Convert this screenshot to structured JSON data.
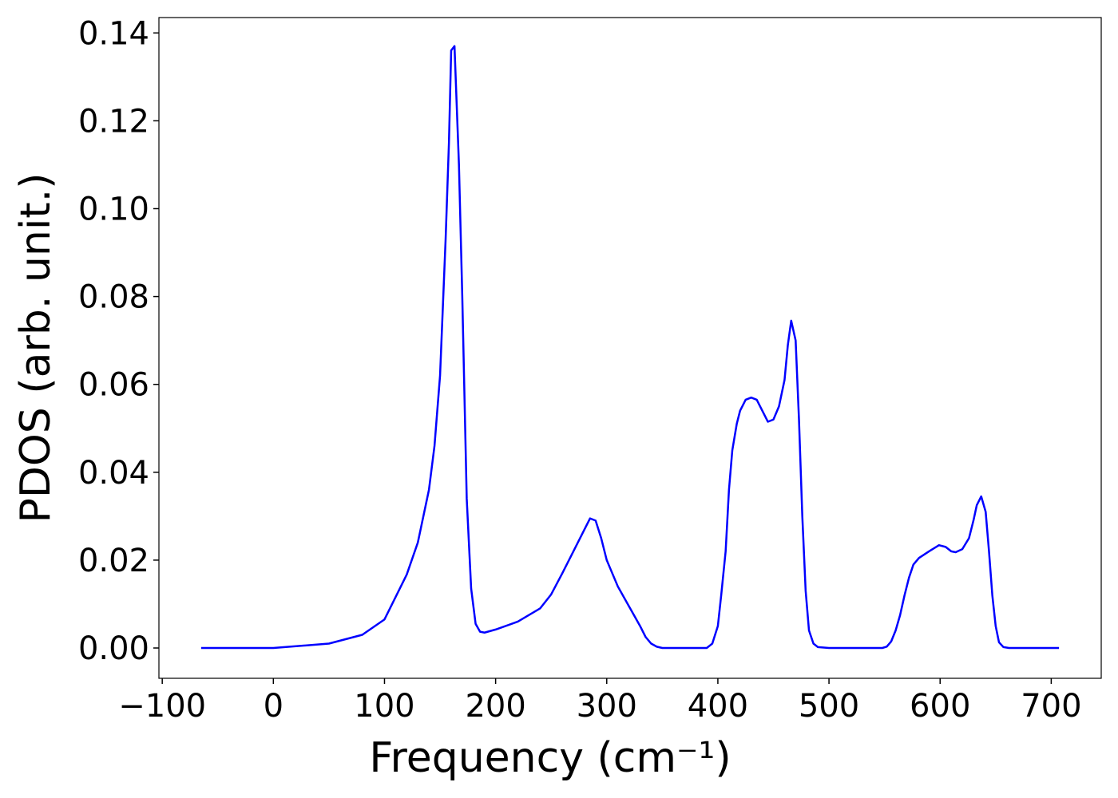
{
  "chart_data": {
    "type": "line",
    "xlabel": "Frequency (cm⁻¹)",
    "ylabel": "PDOS (arb. unit.)",
    "color": "#0000ff",
    "x": [
      -65,
      0,
      50,
      80,
      100,
      120,
      130,
      140,
      145,
      150,
      155,
      158,
      160,
      163,
      167,
      170,
      174,
      178,
      182,
      186,
      190,
      200,
      220,
      240,
      250,
      260,
      270,
      280,
      285,
      290,
      295,
      300,
      310,
      320,
      330,
      335,
      340,
      345,
      350,
      390,
      395,
      400,
      403,
      407,
      410,
      413,
      417,
      420,
      425,
      430,
      435,
      440,
      445,
      450,
      455,
      460,
      463,
      466,
      470,
      473,
      476,
      479,
      482,
      486,
      490,
      500,
      548,
      552,
      556,
      560,
      564,
      568,
      572,
      576,
      581,
      590,
      599,
      605,
      610,
      614,
      620,
      626,
      630,
      633,
      637,
      641,
      644,
      647,
      650,
      653,
      657,
      662,
      707
    ],
    "values": [
      0,
      0,
      0.001,
      0.003,
      0.0065,
      0.0167,
      0.024,
      0.036,
      0.046,
      0.062,
      0.093,
      0.115,
      0.136,
      0.137,
      0.11,
      0.08,
      0.034,
      0.0135,
      0.0055,
      0.0037,
      0.0035,
      0.0042,
      0.006,
      0.009,
      0.0122,
      0.017,
      0.022,
      0.027,
      0.0295,
      0.029,
      0.025,
      0.02,
      0.014,
      0.0095,
      0.005,
      0.0025,
      0.001,
      0.0003,
      0,
      0,
      0.001,
      0.005,
      0.012,
      0.022,
      0.036,
      0.045,
      0.051,
      0.054,
      0.0565,
      0.057,
      0.0565,
      0.054,
      0.0515,
      0.052,
      0.055,
      0.061,
      0.069,
      0.0745,
      0.07,
      0.052,
      0.03,
      0.013,
      0.004,
      0.001,
      0.0002,
      0,
      0,
      0.0003,
      0.0015,
      0.004,
      0.0075,
      0.012,
      0.016,
      0.019,
      0.0205,
      0.022,
      0.0234,
      0.023,
      0.022,
      0.0218,
      0.0225,
      0.025,
      0.029,
      0.0325,
      0.0345,
      0.031,
      0.022,
      0.012,
      0.005,
      0.0013,
      0.0002,
      0,
      0
    ],
    "xlim": [
      -103,
      745
    ],
    "ylim": [
      -0.0069,
      0.1435
    ],
    "xticks": [
      {
        "value": -100,
        "label": "−100"
      },
      0,
      100,
      200,
      300,
      400,
      500,
      600,
      700
    ],
    "yticks": [
      {
        "value": 0,
        "label": "0.00"
      },
      {
        "value": 0.02,
        "label": "0.02"
      },
      {
        "value": 0.04,
        "label": "0.04"
      },
      {
        "value": 0.06,
        "label": "0.06"
      },
      {
        "value": 0.08,
        "label": "0.08"
      },
      {
        "value": 0.1,
        "label": "0.10"
      },
      {
        "value": 0.12,
        "label": "0.12"
      },
      {
        "value": 0.14,
        "label": "0.14"
      }
    ]
  }
}
